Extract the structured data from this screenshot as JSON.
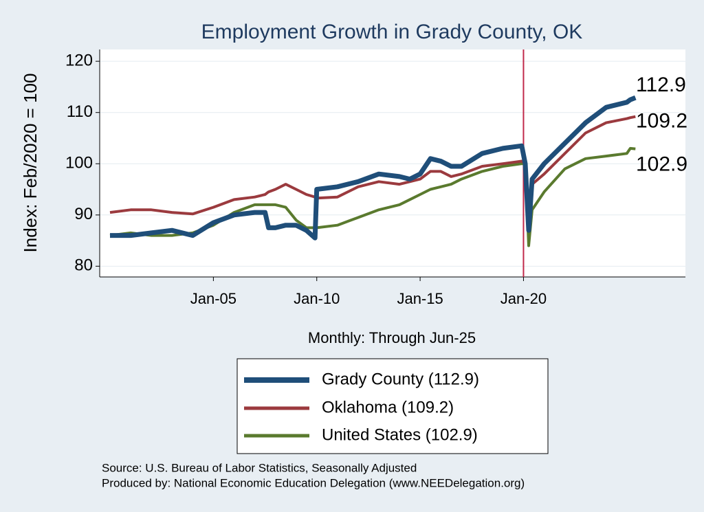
{
  "chart_data": {
    "type": "line",
    "title": "Employment Growth in Grady  County, OK",
    "x_label": "Monthly: Through Jun-25",
    "y_label": "Index: Feb/2020 = 100",
    "notes": [
      "Source: U.S. Bureau of Labor Statistics, Seasonally Adjusted",
      "Produced by: National Economic Education Delegation (www.NEEDelegation.org)"
    ],
    "vline": {
      "x": "Jan-20",
      "color": "#c0284a"
    },
    "x": [
      "Jan-00",
      "Jan-01",
      "Jan-02",
      "Jan-03",
      "Jan-04",
      "Jan-05",
      "Jan-06",
      "Jan-07",
      "Jul-07",
      "Sep-07",
      "Jan-08",
      "Jul-08",
      "Jan-09",
      "Jul-09",
      "Dec-09",
      "Jan-10",
      "Jan-11",
      "Jan-12",
      "Jan-13",
      "Jan-14",
      "Jul-14",
      "Jan-15",
      "Jul-15",
      "Jan-16",
      "Jul-16",
      "Jan-17",
      "Jan-18",
      "Jan-19",
      "Dec-19",
      "Feb-20",
      "Apr-20",
      "Jun-20",
      "Jan-21",
      "Jan-22",
      "Jan-23",
      "Jan-24",
      "Jan-25",
      "Mar-25",
      "Jun-25"
    ],
    "xlim": [
      "Jul-99",
      "Nov-27"
    ],
    "xticks": [
      "Jan-05",
      "Jan-10",
      "Jan-15",
      "Jan-20"
    ],
    "ylim": [
      77.9,
      122.3
    ],
    "yticks": [
      80,
      90,
      100,
      110,
      120
    ],
    "grid": true,
    "series": [
      {
        "name": "Grady  County (112.9)",
        "color": "#1f4e79",
        "values": [
          86,
          86,
          86.5,
          87,
          86,
          88.5,
          90,
          90.5,
          90.5,
          87.5,
          87.5,
          88,
          88,
          87,
          85.5,
          95,
          95.5,
          96.5,
          98,
          97.5,
          97,
          98,
          101,
          100.5,
          99.5,
          99.5,
          102,
          103,
          103.5,
          100,
          87,
          97,
          100,
          104,
          108,
          111,
          112,
          112.5,
          112.9
        ]
      },
      {
        "name": "Oklahoma (109.2)",
        "color": "#9b3a3e",
        "values": [
          90.5,
          91,
          91,
          90.5,
          90.2,
          91.5,
          93,
          93.5,
          94,
          94.5,
          95,
          96,
          95,
          94,
          93.5,
          93.3,
          93.5,
          95.5,
          96.5,
          96,
          96.5,
          97,
          98.5,
          98.5,
          97.5,
          98,
          99.5,
          100,
          100.5,
          100,
          88,
          96,
          98,
          102,
          106,
          108,
          108.8,
          109,
          109.2
        ]
      },
      {
        "name": "United States (102.9)",
        "color": "#5a7a2e",
        "values": [
          86,
          86.5,
          86,
          86,
          86.5,
          88,
          90.5,
          92,
          92,
          92,
          92,
          91.5,
          89,
          87.5,
          87.5,
          87.5,
          88,
          89.5,
          91,
          92,
          93,
          94,
          95,
          95.5,
          96,
          97,
          98.5,
          99.5,
          100,
          100,
          84,
          91,
          94.5,
          99,
          101,
          101.5,
          102,
          103,
          102.9
        ]
      }
    ]
  }
}
